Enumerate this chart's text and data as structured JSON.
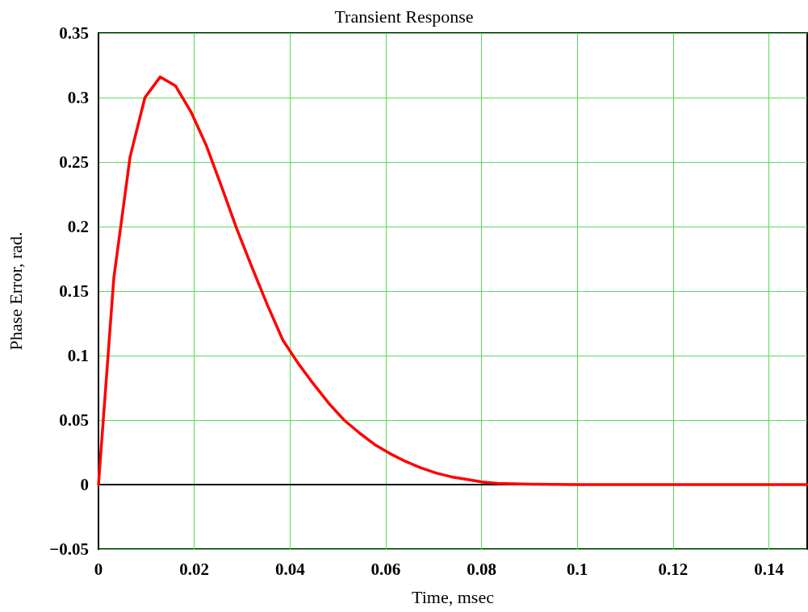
{
  "chart_data": {
    "type": "line",
    "title": "Transient Response",
    "xlabel": "Time, msec",
    "ylabel": "Phase Error, rad.",
    "x": [
      0,
      0.0032,
      0.0066,
      0.0097,
      0.0129,
      0.0161,
      0.0193,
      0.0225,
      0.0257,
      0.0289,
      0.0321,
      0.0353,
      0.0385,
      0.0417,
      0.0449,
      0.0481,
      0.0513,
      0.0545,
      0.0577,
      0.0609,
      0.0641,
      0.0673,
      0.0705,
      0.0737,
      0.0769,
      0.0801,
      0.0833,
      0.09,
      0.1,
      0.11,
      0.12,
      0.13,
      0.148
    ],
    "series": [
      {
        "color": "#ff0000",
        "values": [
          0,
          0.16,
          0.254,
          0.3,
          0.316,
          0.309,
          0.289,
          0.263,
          0.231,
          0.198,
          0.168,
          0.139,
          0.112,
          0.094,
          0.078,
          0.063,
          0.05,
          0.04,
          0.031,
          0.024,
          0.018,
          0.013,
          0.009,
          0.006,
          0.004,
          0.002,
          0.001,
          0.0003,
          0,
          0,
          0,
          0,
          0
        ]
      }
    ],
    "xlim": [
      0,
      0.148
    ],
    "xticks": [
      0,
      0.02,
      0.04,
      0.06,
      0.08,
      0.1,
      0.12,
      0.14
    ],
    "ylim": [
      -0.05,
      0.35
    ],
    "yticks": [
      {
        "value": -0.05,
        "label": "−0.05"
      },
      0,
      0.05,
      0.1,
      0.15,
      0.2,
      0.25,
      0.3,
      0.35
    ],
    "grid": true,
    "line_style": "solid",
    "marker": "none"
  }
}
